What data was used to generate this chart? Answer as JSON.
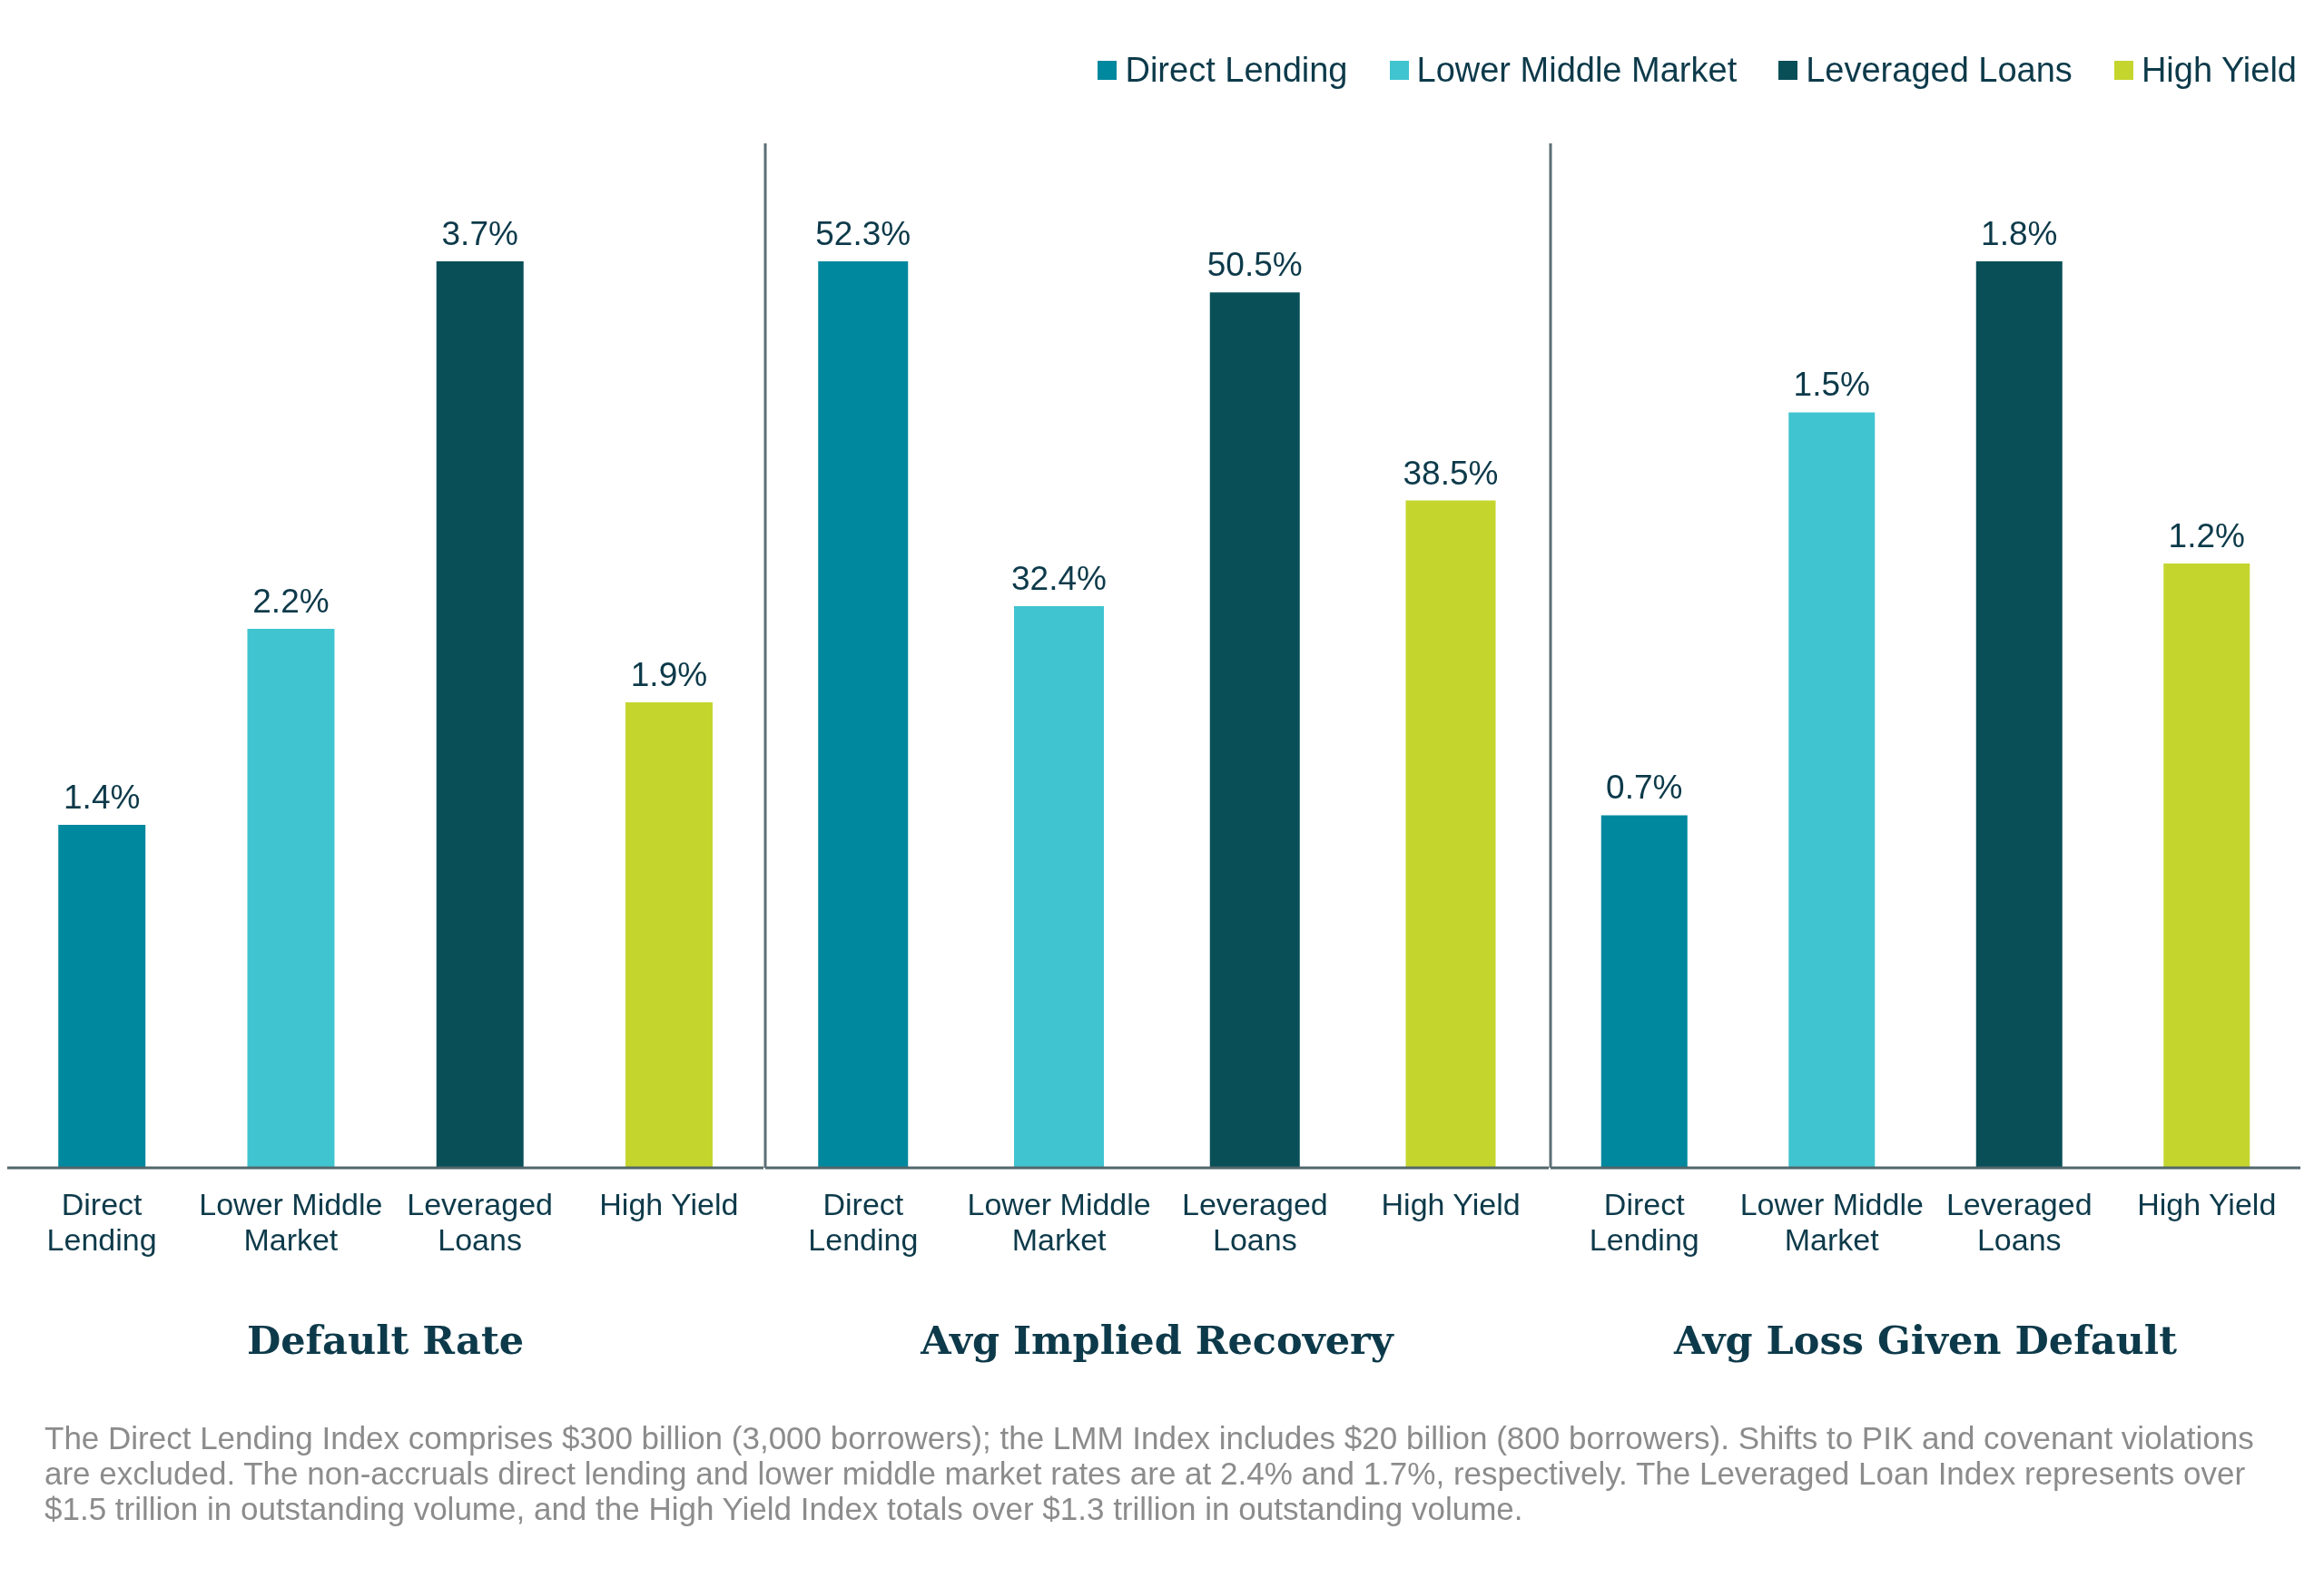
{
  "chart_data": [
    {
      "type": "bar",
      "xlabel": "Default Rate",
      "categories": [
        "Direct Lending",
        "Lower Middle Market",
        "Leveraged Loans",
        "High Yield"
      ],
      "stacked": true,
      "series": [
        {
          "color": "#00889e",
          "values": [
            1.4,
            null,
            null,
            null
          ],
          "value_labels": [
            "1.4%",
            null,
            null,
            null
          ]
        },
        {
          "color": "#40c4d0",
          "values": [
            null,
            2.2,
            null,
            null
          ],
          "value_labels": [
            null,
            "2.2%",
            null,
            null
          ]
        },
        {
          "color": "#094f57",
          "values": [
            null,
            null,
            3.7,
            null
          ],
          "value_labels": [
            null,
            null,
            "3.7%",
            null
          ]
        },
        {
          "color": "#c4d62e",
          "values": [
            null,
            null,
            null,
            1.9
          ],
          "value_labels": [
            null,
            null,
            null,
            "1.9%"
          ]
        }
      ],
      "tick_labels": "x",
      "annotations": [
        "The Direct Lending Index comprises $300 billion (3,000 borrowers); the LMM Index includes $20 billion (800 borrowers). Shifts to PIK and covenant violations are excluded. The non-accruals direct lending and lower middle market rates are at 2.4% and 1.7%, respectively. The Leveraged Loan Index represents over $1.5 trillion in outstanding volume, and the High Yield Index totals over $1.3 trillion in outstanding volume."
      ]
    },
    {
      "type": "bar",
      "xlabel": "Avg Implied Recovery",
      "categories": [
        "Direct Lending",
        "Lower Middle Market",
        "Leveraged Loans",
        "High Yield"
      ],
      "stacked": true,
      "series": [
        {
          "name": "Direct Lending",
          "color": "#00889e",
          "values": [
            52.3,
            null,
            null,
            null
          ],
          "value_labels": [
            "52.3%",
            null,
            null,
            null
          ]
        },
        {
          "name": "Lower Middle Market",
          "color": "#40c4d0",
          "values": [
            null,
            32.4,
            null,
            null
          ],
          "value_labels": [
            null,
            "32.4%",
            null,
            null
          ]
        },
        {
          "name": "Leveraged Loans",
          "color": "#094f57",
          "values": [
            null,
            null,
            50.5,
            null
          ],
          "value_labels": [
            null,
            null,
            "50.5%",
            null
          ]
        },
        {
          "name": "High Yield",
          "color": "#c4d62e",
          "values": [
            null,
            null,
            null,
            38.5
          ],
          "value_labels": [
            null,
            null,
            null,
            "38.5%"
          ]
        }
      ],
      "tick_labels": "x",
      "legend": "top right"
    },
    {
      "type": "bar",
      "xlabel": "Avg Loss Given Default",
      "categories": [
        "Direct Lending",
        "Lower Middle Market",
        "Leveraged Loans",
        "High Yield"
      ],
      "stacked": true,
      "series": [
        {
          "color": "#00889e",
          "values": [
            0.7,
            null,
            null,
            null
          ],
          "value_labels": [
            "0.7%",
            null,
            null,
            null
          ]
        },
        {
          "color": "#40c4d0",
          "values": [
            null,
            1.5,
            null,
            null
          ],
          "value_labels": [
            null,
            "1.5%",
            null,
            null
          ]
        },
        {
          "color": "#094f57",
          "values": [
            null,
            null,
            1.8,
            null
          ],
          "value_labels": [
            null,
            null,
            "1.8%",
            null
          ]
        },
        {
          "color": "#c4d62e",
          "values": [
            null,
            null,
            null,
            1.2
          ],
          "value_labels": [
            null,
            null,
            null,
            "1.2%"
          ]
        }
      ],
      "tick_labels": "x"
    }
  ]
}
